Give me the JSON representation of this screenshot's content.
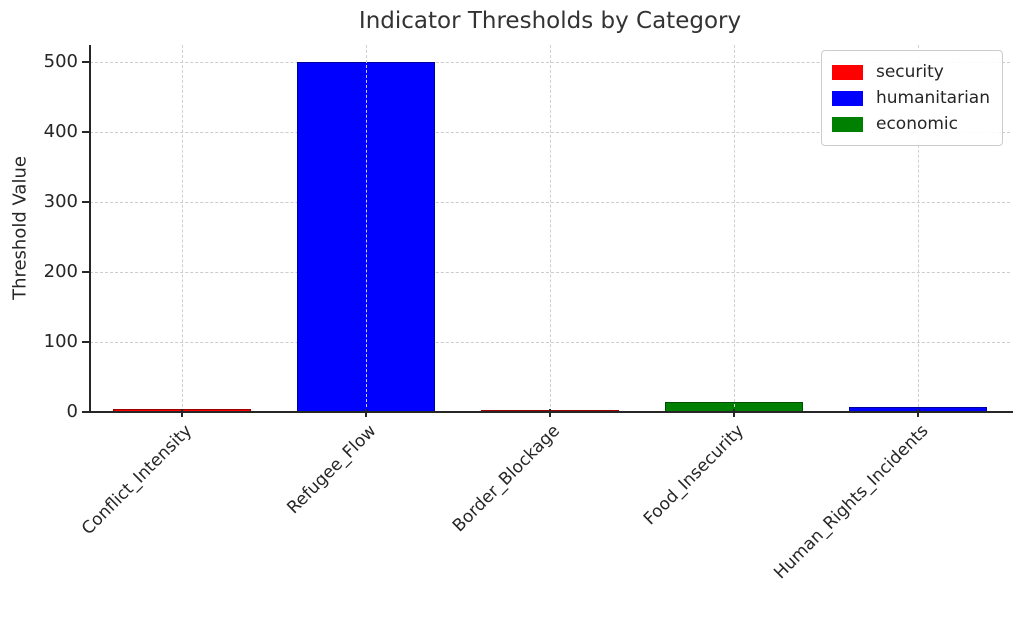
{
  "chart_data": {
    "type": "bar",
    "title": "Indicator Thresholds by Category",
    "xlabel": "",
    "ylabel": "Threshold Value",
    "categories": [
      "Conflict_Intensity",
      "Refugee_Flow",
      "Border_Blockage",
      "Food_Insecurity",
      "Human_Rights_Incidents"
    ],
    "values": [
      5,
      500,
      3,
      15,
      7
    ],
    "bar_groups": [
      "security",
      "humanitarian",
      "security",
      "economic",
      "humanitarian"
    ],
    "group_colors": {
      "security": "#ff0000",
      "humanitarian": "#0000ff",
      "economic": "#008000"
    },
    "ylim": [
      0,
      525
    ],
    "yticks": [
      0,
      100,
      200,
      300,
      400,
      500
    ],
    "x_tick_label_rotation_deg": 45,
    "grid": {
      "horizontal": true,
      "vertical": true,
      "line_style": "dashed",
      "color": "#cccccc"
    },
    "legend": {
      "position": "upper right",
      "entries": [
        {
          "label": "security",
          "color": "#ff0000"
        },
        {
          "label": "humanitarian",
          "color": "#0000ff"
        },
        {
          "label": "economic",
          "color": "#008000"
        }
      ]
    }
  }
}
